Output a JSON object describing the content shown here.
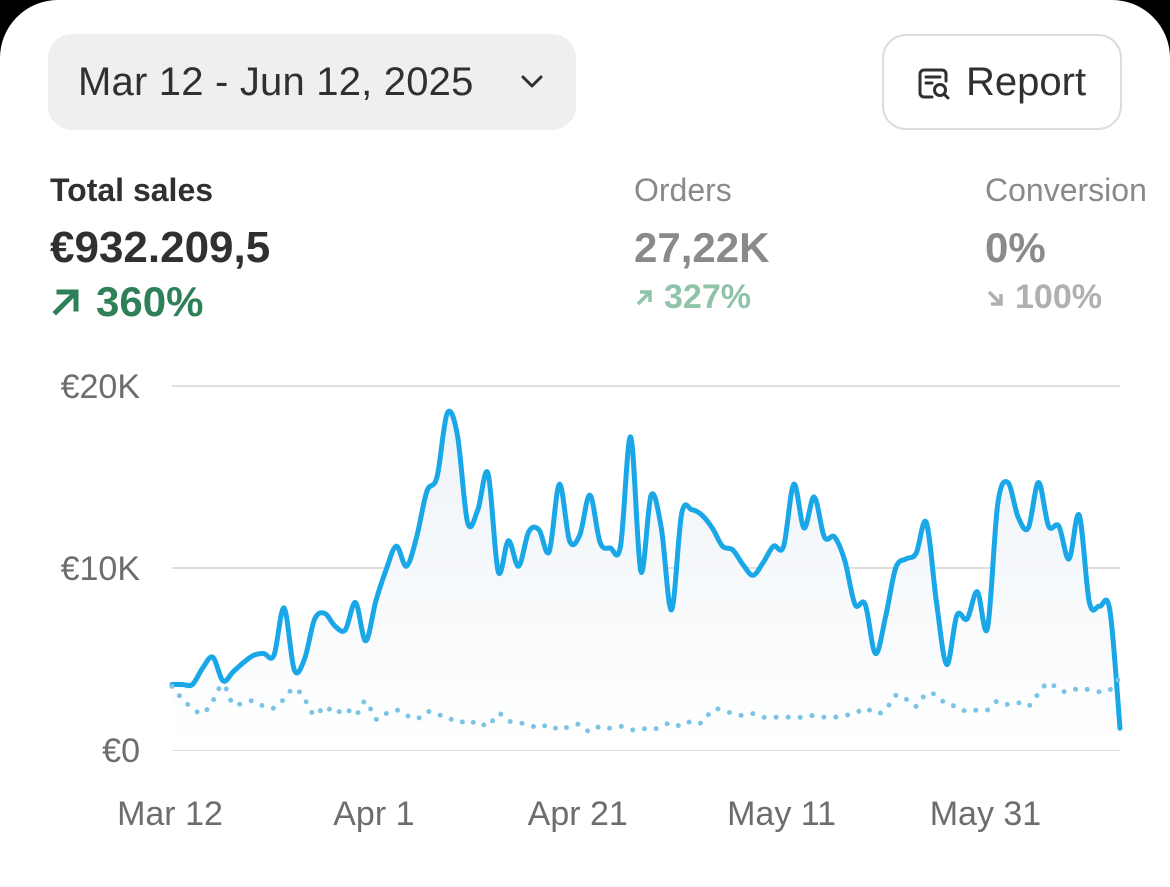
{
  "date_range": {
    "label": "Mar 12 - Jun 12, 2025"
  },
  "report_button": {
    "label": "Report"
  },
  "metrics": [
    {
      "title": "Total sales",
      "value": "€932.209,5",
      "change": "360%",
      "direction": "up"
    },
    {
      "title": "Orders",
      "value": "27,22K",
      "change": "327%",
      "direction": "up"
    },
    {
      "title": "Conversion",
      "value": "0%",
      "change": "100%",
      "direction": "down"
    }
  ],
  "colors": {
    "accent_line": "#1aa7e8",
    "comparison_line": "#7cc4e4",
    "positive": "#2e8058",
    "text": "#303030",
    "muted": "#8a8a8a"
  },
  "icons": {
    "date_dropdown": "chevron-down-icon",
    "report": "report-search-icon",
    "trend_up": "arrow-up-right-icon",
    "trend_down": "arrow-down-right-icon"
  },
  "chart_data": {
    "type": "line",
    "title": "",
    "xlabel": "",
    "ylabel": "",
    "ylim": [
      0,
      20000
    ],
    "y_ticks": [
      0,
      10000,
      20000
    ],
    "y_tick_labels": [
      "€0",
      "€10K",
      "€20K"
    ],
    "x_tick_labels": [
      "Mar 12",
      "Apr 1",
      "Apr 21",
      "May 11",
      "May 31"
    ],
    "x_tick_day_index": [
      0,
      20,
      40,
      60,
      80
    ],
    "grid": true,
    "legend": "none",
    "series": [
      {
        "style": "solid",
        "fill_area": true,
        "values": [
          3600,
          3600,
          3600,
          4500,
          5100,
          3800,
          4300,
          4800,
          5200,
          5300,
          5200,
          7800,
          4400,
          5000,
          7200,
          7500,
          6800,
          6600,
          8100,
          6000,
          8200,
          9900,
          11200,
          10100,
          11700,
          14200,
          15000,
          18500,
          17300,
          12500,
          13200,
          15200,
          9800,
          11500,
          10100,
          12000,
          12100,
          10900,
          14600,
          11500,
          11800,
          14000,
          11400,
          11100,
          11200,
          17200,
          9800,
          14000,
          12200,
          7700,
          13000,
          13200,
          12900,
          12200,
          11200,
          11000,
          10200,
          9600,
          10300,
          11200,
          11200,
          14600,
          12200,
          13900,
          11700,
          11700,
          10400,
          8000,
          8000,
          5300,
          7300,
          10000,
          10500,
          10800,
          12500,
          8100,
          4700,
          7400,
          7200,
          8700,
          6700,
          13500,
          14700,
          12800,
          12200,
          14700,
          12300,
          12300,
          10500,
          12900,
          8100,
          7900,
          7700,
          1200
        ]
      },
      {
        "style": "dotted",
        "fill_area": false,
        "values": [
          3500,
          2800,
          2300,
          2000,
          2700,
          3600,
          2500,
          2600,
          2700,
          2400,
          2300,
          2800,
          3400,
          2800,
          1900,
          2400,
          2000,
          2300,
          1900,
          2700,
          1700,
          2000,
          2200,
          1900,
          1700,
          2100,
          2000,
          1700,
          1700,
          1400,
          1600,
          1300,
          2000,
          1600,
          1500,
          1400,
          1200,
          1400,
          1100,
          1300,
          1400,
          1000,
          1300,
          1200,
          1300,
          1100,
          1200,
          1100,
          1300,
          1500,
          1300,
          1600,
          1500,
          2200,
          2200,
          2000,
          1900,
          2000,
          1800,
          1800,
          1800,
          1800,
          1800,
          1900,
          1800,
          1800,
          1900,
          2000,
          2300,
          2000,
          2200,
          3000,
          2800,
          2400,
          3100,
          3000,
          2500,
          2400,
          2100,
          2200,
          2200,
          2700,
          2500,
          2600,
          2400,
          3100,
          3700,
          3300,
          3200,
          3400,
          3300,
          3200,
          3300,
          4000
        ]
      }
    ]
  }
}
